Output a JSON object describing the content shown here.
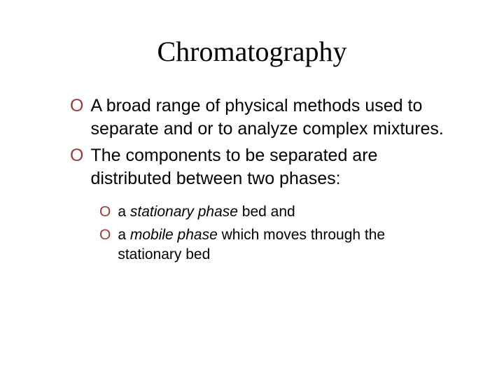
{
  "slide": {
    "title": "Chromatography",
    "title_fontsize": 40,
    "title_color": "#000000",
    "background_color": "#ffffff",
    "bullets": {
      "level1": [
        {
          "text": "A broad range of physical methods used to separate and or to analyze complex mixtures."
        },
        {
          "text": "The components to be separated are distributed between two phases:"
        }
      ],
      "level2": [
        {
          "prefix": "a ",
          "em": "stationary phase",
          "suffix": " bed and"
        },
        {
          "prefix": " a ",
          "em": "mobile phase",
          "suffix": " which moves through the stationary bed"
        }
      ],
      "level1_fontsize": 25,
      "level2_fontsize": 21,
      "marker_text": "O",
      "marker_color": "#9b3a3a",
      "text_color": "#000000"
    }
  }
}
